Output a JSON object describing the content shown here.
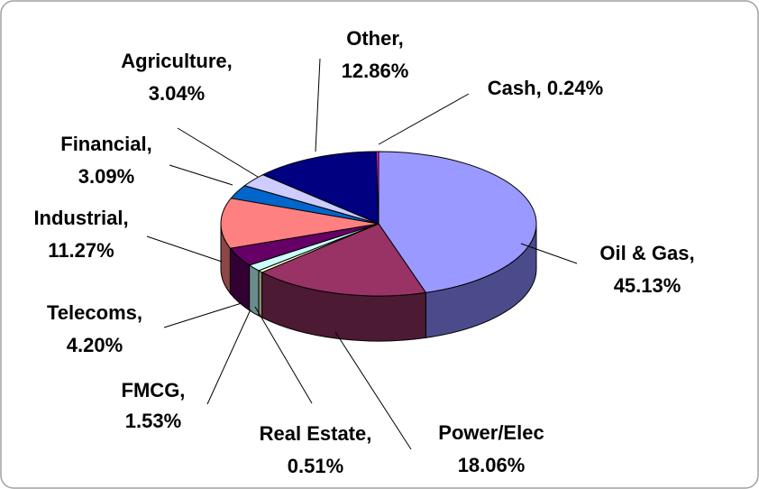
{
  "chart_data": {
    "type": "pie",
    "title": "",
    "style": "3d-pie",
    "slices": [
      {
        "name": "Oil & Gas",
        "value": 45.13,
        "label_line1": "Oil & Gas,",
        "label_line2": "45.13%",
        "color": "#9999FF",
        "side_color": "#4B4B8C"
      },
      {
        "name": "Power/Elec",
        "value": 18.06,
        "label_line1": "Power/Elec",
        "label_line2": "18.06%",
        "color": "#993366",
        "side_color": "#4D1A33"
      },
      {
        "name": "Real Estate",
        "value": 0.51,
        "label_line1": "Real Estate,",
        "label_line2": "0.51%",
        "color": "#FFFFCC",
        "side_color": "#8C8C70"
      },
      {
        "name": "FMCG",
        "value": 1.53,
        "label_line1": "FMCG,",
        "label_line2": "1.53%",
        "color": "#CCFFFF",
        "side_color": "#6B8C8C"
      },
      {
        "name": "Telecoms",
        "value": 4.2,
        "label_line1": "Telecoms,",
        "label_line2": "4.20%",
        "color": "#660066",
        "side_color": "#330033"
      },
      {
        "name": "Industrial",
        "value": 11.27,
        "label_line1": "Industrial,",
        "label_line2": "11.27%",
        "color": "#FF8080",
        "side_color": "#8C4646"
      },
      {
        "name": "Financial",
        "value": 3.09,
        "label_line1": "Financial,",
        "label_line2": "3.09%",
        "color": "#0066CC",
        "side_color": "#003366"
      },
      {
        "name": "Agriculture",
        "value": 3.04,
        "label_line1": "Agriculture,",
        "label_line2": "3.04%",
        "color": "#CCCCFF",
        "side_color": "#70708C"
      },
      {
        "name": "Other",
        "value": 12.86,
        "label_line1": "Other,",
        "label_line2": "12.86%",
        "color": "#000080",
        "side_color": "#000040"
      },
      {
        "name": "Cash",
        "value": 0.24,
        "label_line1": "Cash, 0.24%",
        "label_line2": "",
        "color": "#FF00FF",
        "side_color": "#800080"
      }
    ],
    "start_angle_deg": -90,
    "direction": "clockwise",
    "legend": "none"
  }
}
